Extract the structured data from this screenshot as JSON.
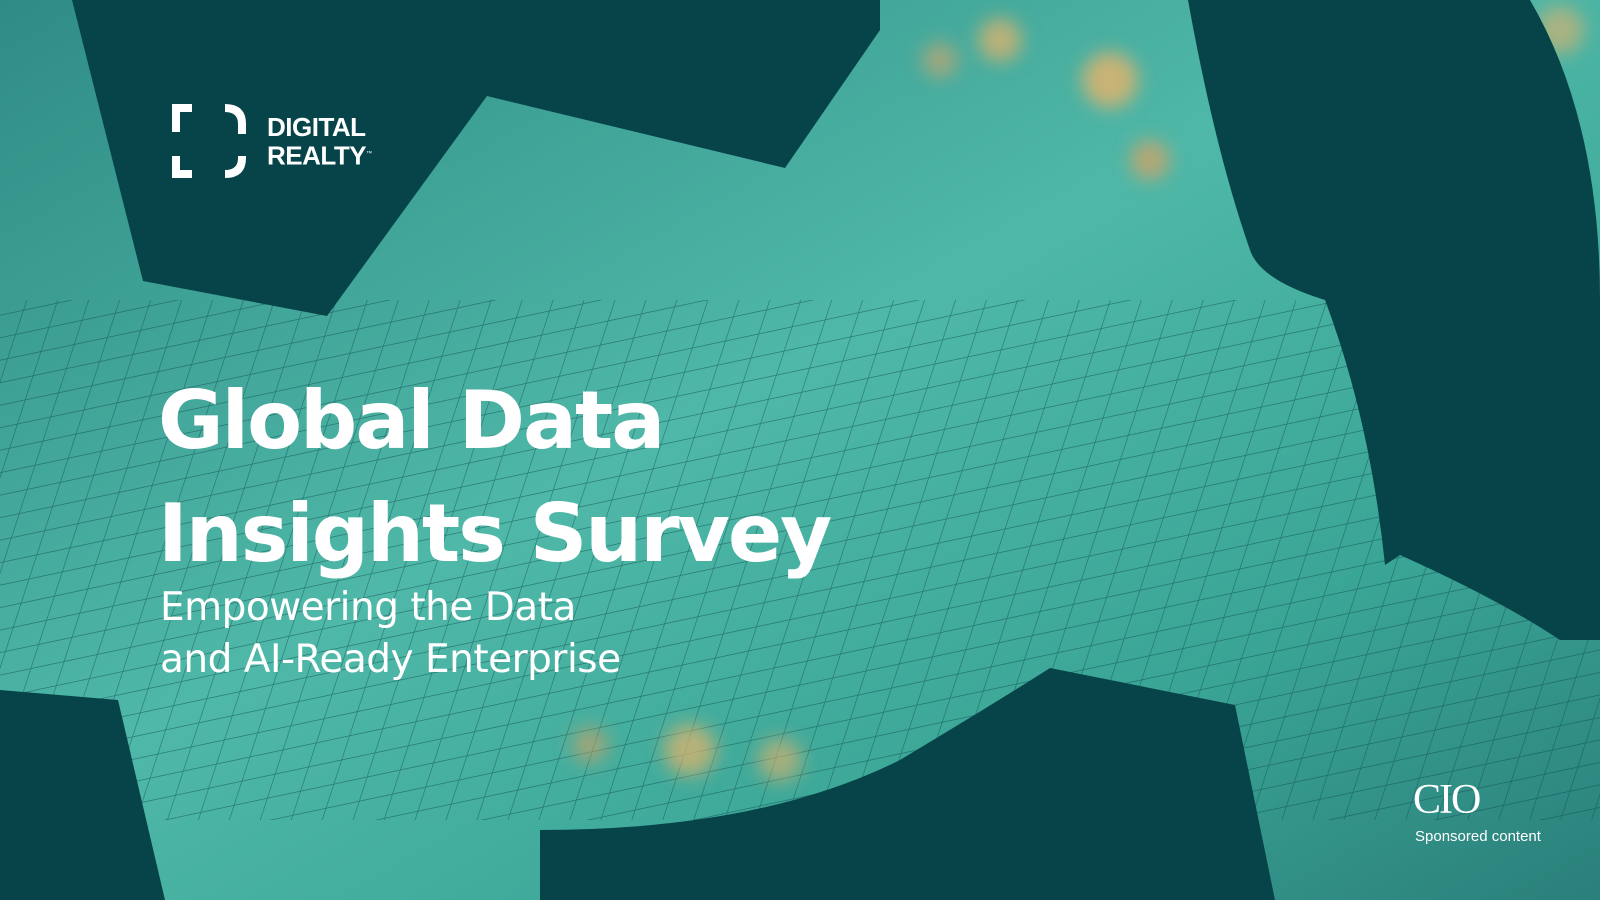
{
  "logo": {
    "line1": "DIGITAL",
    "line2": "REALTY",
    "mark": "™"
  },
  "title": {
    "lines": [
      "Global Data",
      "Insights Survey"
    ]
  },
  "subtitle": {
    "lines": [
      "Empowering the Data",
      "and AI-Ready Enterprise"
    ]
  },
  "footer": {
    "publisher": "CIO",
    "note": "Sponsored content"
  }
}
